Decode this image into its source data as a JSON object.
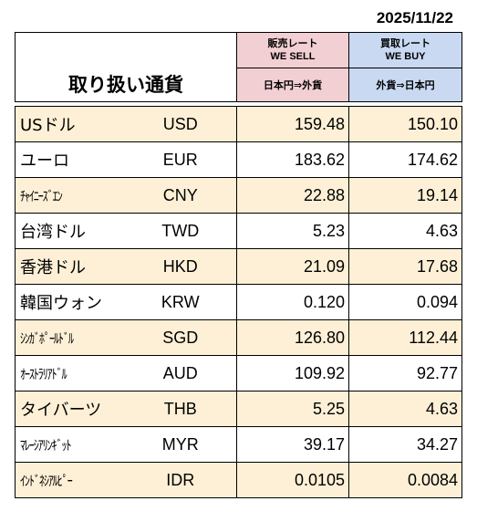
{
  "date": "2025/11/22",
  "title": "取り扱い通貨",
  "headers": {
    "sell_jp": "販売レート",
    "sell_en": "WE SELL",
    "buy_jp": "買取レート",
    "buy_en": "WE BUY",
    "sell_dir": "日本円⇒外貨",
    "buy_dir": "外貨⇒日本円"
  },
  "rows": [
    {
      "name": "USドル",
      "code": "USD",
      "sell": "159.48",
      "buy": "150.10"
    },
    {
      "name": "ユーロ",
      "code": "EUR",
      "sell": "183.62",
      "buy": "174.62"
    },
    {
      "name": "ﾁｬｲﾆｰｽﾞｴﾝ",
      "code": "CNY",
      "sell": "22.88",
      "buy": "19.14"
    },
    {
      "name": "台湾ドル",
      "code": "TWD",
      "sell": "5.23",
      "buy": "4.63"
    },
    {
      "name": "香港ドル",
      "code": "HKD",
      "sell": "21.09",
      "buy": "17.68"
    },
    {
      "name": "韓国ウォン",
      "code": "KRW",
      "sell": "0.120",
      "buy": "0.094"
    },
    {
      "name": "ｼﾝｶﾞﾎﾟｰﾙﾄﾞﾙ",
      "code": "SGD",
      "sell": "126.80",
      "buy": "112.44"
    },
    {
      "name": "ｵｰｽﾄﾗﾘｱﾄﾞﾙ",
      "code": "AUD",
      "sell": "109.92",
      "buy": "92.77"
    },
    {
      "name": "タイバーツ",
      "code": "THB",
      "sell": "5.25",
      "buy": "4.63"
    },
    {
      "name": "ﾏﾚｰｼｱﾘﾝｷﾞｯﾄ",
      "code": "MYR",
      "sell": "39.17",
      "buy": "34.27"
    },
    {
      "name": "ｲﾝﾄﾞﾈｼｱﾙﾋﾟｰ",
      "code": "IDR",
      "sell": "0.0105",
      "buy": "0.0084"
    }
  ]
}
